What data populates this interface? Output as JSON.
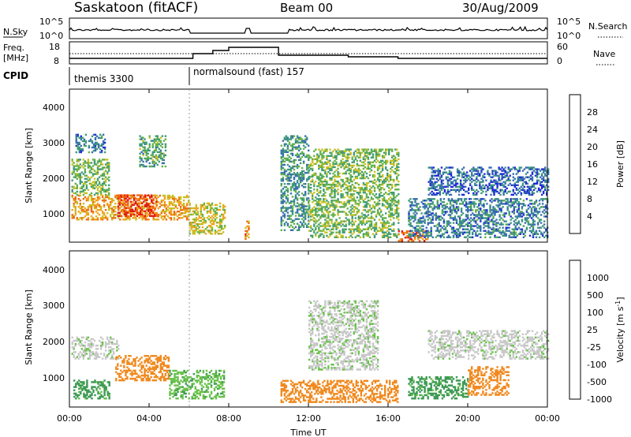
{
  "header": {
    "station": "Saskatoon (fitACF)",
    "beam": "Beam 00",
    "date": "30/Aug/2009"
  },
  "noise_panel": {
    "left_label": "N.Sky",
    "right_label": "N.Search",
    "left_ticks": [
      "10^5",
      "10^0"
    ],
    "right_ticks": [
      "10^5",
      "10^0"
    ]
  },
  "freq_panel": {
    "left_label_1": "Freq.",
    "left_label_2": "[MHz]",
    "right_label": "Nave",
    "left_ticks": [
      "18",
      "8"
    ],
    "right_ticks": [
      "60",
      "0"
    ]
  },
  "cpid_panel": {
    "label": "CPID",
    "modes": [
      {
        "text": "themis 3300",
        "start_hour": 0
      },
      {
        "text": "normalsound (fast) 157",
        "start_hour": 6
      }
    ]
  },
  "power_panel": {
    "ylabel": "Slant Range [km]",
    "yticks": [
      "1000",
      "2000",
      "3000",
      "4000"
    ],
    "colorbar_label": "Power [dB]",
    "colorbar_ticks": [
      "4",
      "8",
      "12",
      "16",
      "20",
      "24",
      "28"
    ],
    "colors": [
      "#1f2bd8",
      "#3a6fb0",
      "#3f9a7a",
      "#66b24a",
      "#c8c023",
      "#f2a11d",
      "#ee6a14",
      "#e21b12"
    ]
  },
  "velocity_panel": {
    "ylabel": "Slant Range [km]",
    "yticks": [
      "1000",
      "2000",
      "3000",
      "4000"
    ],
    "colorbar_label": "Velocity [m s^-1]",
    "colorbar_ticks": [
      "1000",
      "500",
      "100",
      "25",
      "-25",
      "-100",
      "-500",
      "-1000"
    ],
    "colors": [
      "#2234c4",
      "#3a7a9a",
      "#3f9a55",
      "#6ac24b",
      "#c8c8c8",
      "#f0b030",
      "#f08a20",
      "#e82020"
    ]
  },
  "xaxis": {
    "label": "Time UT",
    "ticks": [
      "00:00",
      "04:00",
      "08:00",
      "12:00",
      "16:00",
      "20:00",
      "00:00"
    ]
  },
  "chart_data": {
    "type": "heatmap",
    "x_range_hours": [
      0,
      24
    ],
    "y_range_km": [
      180,
      4500
    ],
    "noise_gap_hours": [
      [
        9.0,
        10.5
      ]
    ],
    "freq_mhz_steps": [
      {
        "from": 0,
        "to": 6.2,
        "value": 10
      },
      {
        "from": 6.2,
        "to": 7.2,
        "value": 13
      },
      {
        "from": 7.2,
        "to": 8.0,
        "value": 15
      },
      {
        "from": 8.0,
        "to": 10.5,
        "value": 17
      },
      {
        "from": 10.5,
        "to": 14.0,
        "value": 12
      },
      {
        "from": 14.0,
        "to": 16.5,
        "value": 11
      },
      {
        "from": 16.5,
        "to": 24,
        "value": 10
      }
    ],
    "power_echo_regions": [
      {
        "t0": 0.1,
        "t1": 6.0,
        "r0": 800,
        "r1": 1500,
        "db": 22
      },
      {
        "t0": 2.4,
        "t1": 4.4,
        "r0": 900,
        "r1": 1500,
        "db": 28
      },
      {
        "t0": 0.1,
        "t1": 2.0,
        "r0": 1500,
        "r1": 2500,
        "db": 14
      },
      {
        "t0": 3.5,
        "t1": 4.8,
        "r0": 2300,
        "r1": 3200,
        "db": 12
      },
      {
        "t0": 0.3,
        "t1": 1.8,
        "r0": 2700,
        "r1": 3200,
        "db": 8
      },
      {
        "t0": 6.0,
        "t1": 7.8,
        "r0": 400,
        "r1": 1300,
        "db": 18
      },
      {
        "t0": 8.8,
        "t1": 9.0,
        "r0": 250,
        "r1": 750,
        "db": 24
      },
      {
        "t0": 10.6,
        "t1": 12.0,
        "r0": 500,
        "r1": 3200,
        "db": 10
      },
      {
        "t0": 12.0,
        "t1": 16.5,
        "r0": 300,
        "r1": 2800,
        "db": 14
      },
      {
        "t0": 16.5,
        "t1": 18.0,
        "r0": 200,
        "r1": 500,
        "db": 26
      },
      {
        "t0": 17.0,
        "t1": 24.0,
        "r0": 300,
        "r1": 1400,
        "db": 8
      },
      {
        "t0": 18.0,
        "t1": 24.0,
        "r0": 1500,
        "r1": 2300,
        "db": 6
      }
    ],
    "velocity_echo_regions": [
      {
        "t0": 0.1,
        "t1": 2.5,
        "r0": 1500,
        "r1": 2100,
        "v": 10
      },
      {
        "t0": 2.3,
        "t1": 5.0,
        "r0": 900,
        "r1": 1600,
        "v": -300
      },
      {
        "t0": 0.2,
        "t1": 2.0,
        "r0": 400,
        "r1": 900,
        "v": 150
      },
      {
        "t0": 5.0,
        "t1": 7.8,
        "r0": 400,
        "r1": 1200,
        "v": 80
      },
      {
        "t0": 10.6,
        "t1": 16.5,
        "r0": 300,
        "r1": 900,
        "v": -200
      },
      {
        "t0": 12.0,
        "t1": 15.5,
        "r0": 1200,
        "r1": 3100,
        "v": 10
      },
      {
        "t0": 17.0,
        "t1": 20.0,
        "r0": 400,
        "r1": 1000,
        "v": 150
      },
      {
        "t0": 20.0,
        "t1": 22.0,
        "r0": 500,
        "r1": 1300,
        "v": -350
      },
      {
        "t0": 18.0,
        "t1": 24.0,
        "r0": 1500,
        "r1": 2300,
        "v": 5
      }
    ]
  }
}
